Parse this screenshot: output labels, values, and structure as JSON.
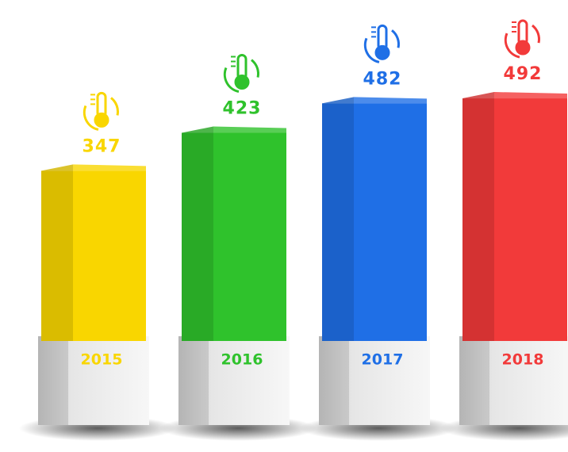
{
  "chart_data": {
    "type": "bar",
    "categories": [
      "2015",
      "2016",
      "2017",
      "2018"
    ],
    "values": [
      347,
      423,
      482,
      492
    ],
    "colors": [
      "#f9d600",
      "#2fc22c",
      "#1f6fe6",
      "#f23a3a"
    ]
  }
}
